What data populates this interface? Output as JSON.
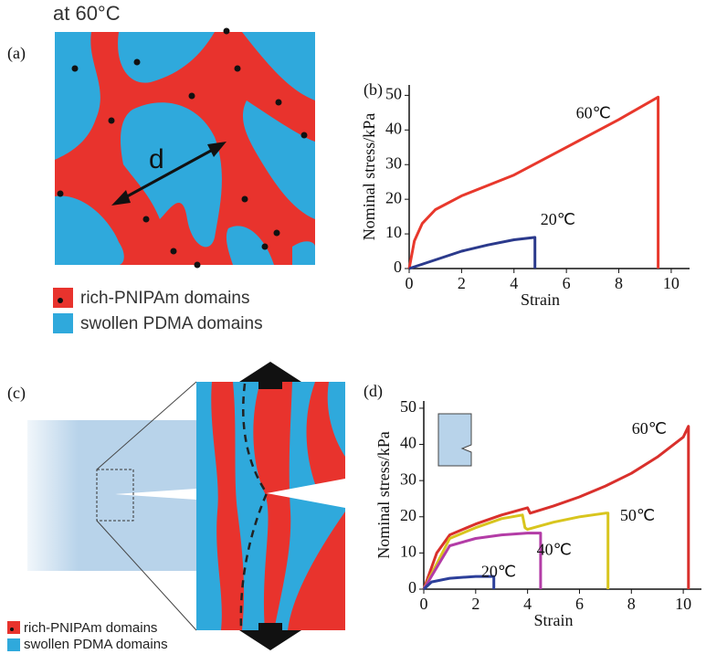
{
  "panels": {
    "a": {
      "label": "(a)",
      "title": "at 60°C",
      "annotation": "d",
      "legend": [
        "rich-PNIPAm domains",
        "swollen PDMA domains"
      ]
    },
    "c": {
      "label": "(c)",
      "legend": [
        "rich-PNIPAm domains",
        "swollen PDMA domains"
      ]
    }
  },
  "chart_data": [
    {
      "type": "line",
      "panel_label": "(b)",
      "xlabel": "Strain",
      "ylabel": "Nominal stress/kPa",
      "xlim": [
        0,
        10.7
      ],
      "ylim": [
        0,
        53
      ],
      "xticks": [
        0,
        2,
        4,
        6,
        8,
        10
      ],
      "yticks": [
        0,
        10,
        20,
        30,
        40,
        50
      ],
      "series": [
        {
          "name": "60℃",
          "color": "#e8382c",
          "x": [
            0,
            0.2,
            0.5,
            1,
            2,
            4,
            6,
            8,
            9.5,
            9.5
          ],
          "values": [
            0,
            8,
            13,
            17,
            21,
            27,
            35,
            43,
            49.5,
            0
          ]
        },
        {
          "name": "20℃",
          "color": "#2b3a8c",
          "x": [
            0,
            1,
            2,
            3,
            4,
            4.8,
            4.8
          ],
          "values": [
            0,
            2.5,
            5,
            6.8,
            8.3,
            9,
            0
          ]
        }
      ]
    },
    {
      "type": "line",
      "panel_label": "(d)",
      "xlabel": "Strain",
      "ylabel": "Nominal stress/kPa",
      "xlim": [
        0,
        10.7
      ],
      "ylim": [
        0,
        52
      ],
      "xticks": [
        0,
        2,
        4,
        6,
        8,
        10
      ],
      "yticks": [
        0,
        10,
        20,
        30,
        40,
        50
      ],
      "series": [
        {
          "name": "60℃",
          "color": "#d9302c",
          "x": [
            0,
            0.5,
            1,
            2,
            3,
            4,
            4.1,
            5,
            6,
            7,
            8,
            9,
            10,
            10.2,
            10.2
          ],
          "values": [
            0,
            10,
            15,
            18,
            20.5,
            22.5,
            21,
            23,
            25.5,
            28.5,
            32,
            36.5,
            42,
            45,
            0
          ]
        },
        {
          "name": "50℃",
          "color": "#d8c51e",
          "x": [
            0,
            1,
            2,
            3,
            3.8,
            3.9,
            4,
            5,
            6,
            7,
            7.1,
            7.1
          ],
          "values": [
            0,
            14,
            17,
            19.5,
            20.5,
            17,
            16.5,
            18.5,
            20,
            21,
            21,
            0
          ]
        },
        {
          "name": "40℃",
          "color": "#b33ca6",
          "x": [
            0,
            1,
            2,
            3,
            4,
            4.5,
            4.5
          ],
          "values": [
            0,
            12,
            14,
            15,
            15.5,
            15.5,
            0
          ]
        },
        {
          "name": "20℃",
          "color": "#2c3f9a",
          "x": [
            0,
            0.3,
            1,
            2,
            2.7,
            2.7
          ],
          "values": [
            0,
            2,
            3,
            3.5,
            3.5,
            0
          ]
        }
      ]
    }
  ]
}
